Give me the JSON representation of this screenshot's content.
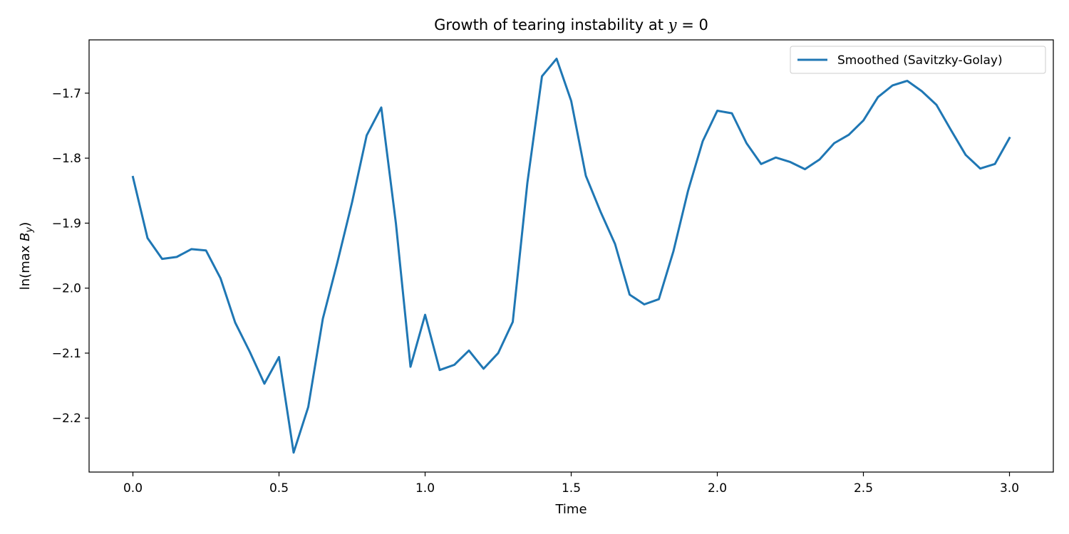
{
  "chart_data": {
    "type": "line",
    "title": "Growth of tearing instability at y = 0",
    "xlabel": "Time",
    "ylabel": "ln(max B_y)",
    "xlim": [
      -0.15,
      3.15
    ],
    "ylim": [
      -2.283,
      -1.618
    ],
    "xticks": [
      0.0,
      0.5,
      1.0,
      1.5,
      2.0,
      2.5,
      3.0
    ],
    "xtick_labels": [
      "0.0",
      "0.5",
      "1.0",
      "1.5",
      "2.0",
      "2.5",
      "3.0"
    ],
    "yticks": [
      -2.2,
      -2.1,
      -2.0,
      -1.9,
      -1.8,
      -1.7
    ],
    "ytick_labels": [
      "−2.2",
      "−2.1",
      "−2.0",
      "−1.9",
      "−1.8",
      "−1.7"
    ],
    "grid": false,
    "legend_position": "top-right",
    "series": [
      {
        "name": "Smoothed (Savitzky-Golay)",
        "color": "#1f77b4",
        "x": [
          0.0,
          0.05,
          0.1,
          0.15,
          0.2,
          0.25,
          0.3,
          0.35,
          0.4,
          0.45,
          0.5,
          0.55,
          0.6,
          0.65,
          0.7,
          0.75,
          0.8,
          0.85,
          0.9,
          0.95,
          1.0,
          1.05,
          1.1,
          1.15,
          1.2,
          1.25,
          1.3,
          1.35,
          1.4,
          1.45,
          1.5,
          1.55,
          1.6,
          1.65,
          1.7,
          1.75,
          1.8,
          1.85,
          1.9,
          1.95,
          2.0,
          2.05,
          2.1,
          2.15,
          2.2,
          2.25,
          2.3,
          2.35,
          2.4,
          2.45,
          2.5,
          2.55,
          2.6,
          2.65,
          2.7,
          2.75,
          2.8,
          2.85,
          2.9,
          2.95,
          3.0
        ],
        "values": [
          -1.829,
          -1.923,
          -1.955,
          -1.952,
          -1.94,
          -1.942,
          -1.985,
          -2.053,
          -2.098,
          -2.147,
          -2.106,
          -2.253,
          -2.183,
          -2.047,
          -1.96,
          -1.868,
          -1.765,
          -1.722,
          -1.9,
          -2.121,
          -2.041,
          -2.126,
          -2.118,
          -2.096,
          -2.124,
          -2.1,
          -2.052,
          -1.838,
          -1.674,
          -1.647,
          -1.712,
          -1.827,
          -1.882,
          -1.932,
          -2.01,
          -2.025,
          -2.017,
          -1.943,
          -1.85,
          -1.774,
          -1.727,
          -1.731,
          -1.777,
          -1.809,
          -1.799,
          -1.806,
          -1.817,
          -1.802,
          -1.777,
          -1.764,
          -1.742,
          -1.706,
          -1.688,
          -1.681,
          -1.697,
          -1.718,
          -1.757,
          -1.795,
          -1.816,
          -1.809,
          -1.769
        ]
      }
    ]
  }
}
